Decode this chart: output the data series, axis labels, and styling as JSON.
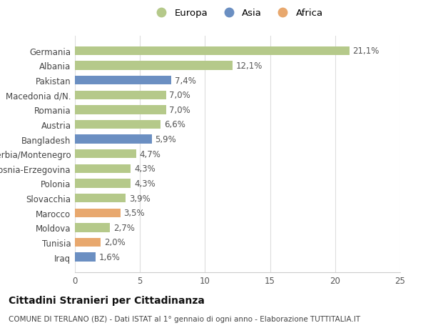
{
  "categories": [
    "Germania",
    "Albania",
    "Pakistan",
    "Macedonia d/N.",
    "Romania",
    "Austria",
    "Bangladesh",
    "Serbia/Montenegro",
    "Bosnia-Erzegovina",
    "Polonia",
    "Slovacchia",
    "Marocco",
    "Moldova",
    "Tunisia",
    "Iraq"
  ],
  "values": [
    21.1,
    12.1,
    7.4,
    7.0,
    7.0,
    6.6,
    5.9,
    4.7,
    4.3,
    4.3,
    3.9,
    3.5,
    2.7,
    2.0,
    1.6
  ],
  "labels": [
    "21,1%",
    "12,1%",
    "7,4%",
    "7,0%",
    "7,0%",
    "6,6%",
    "5,9%",
    "4,7%",
    "4,3%",
    "4,3%",
    "3,9%",
    "3,5%",
    "2,7%",
    "2,0%",
    "1,6%"
  ],
  "continents": [
    "Europa",
    "Europa",
    "Asia",
    "Europa",
    "Europa",
    "Europa",
    "Asia",
    "Europa",
    "Europa",
    "Europa",
    "Europa",
    "Africa",
    "Europa",
    "Africa",
    "Asia"
  ],
  "colors": {
    "Europa": "#b5c98a",
    "Asia": "#6b8fc2",
    "Africa": "#e8a86e"
  },
  "legend_order": [
    "Europa",
    "Asia",
    "Africa"
  ],
  "title": "Cittadini Stranieri per Cittadinanza",
  "subtitle": "COMUNE DI TERLANO (BZ) - Dati ISTAT al 1° gennaio di ogni anno - Elaborazione TUTTITALIA.IT",
  "xlim": [
    0,
    25
  ],
  "xticks": [
    0,
    5,
    10,
    15,
    20,
    25
  ],
  "background_color": "#ffffff",
  "bar_height": 0.6,
  "label_fontsize": 8.5,
  "title_fontsize": 10,
  "subtitle_fontsize": 7.5,
  "tick_fontsize": 8.5,
  "legend_fontsize": 9.5
}
